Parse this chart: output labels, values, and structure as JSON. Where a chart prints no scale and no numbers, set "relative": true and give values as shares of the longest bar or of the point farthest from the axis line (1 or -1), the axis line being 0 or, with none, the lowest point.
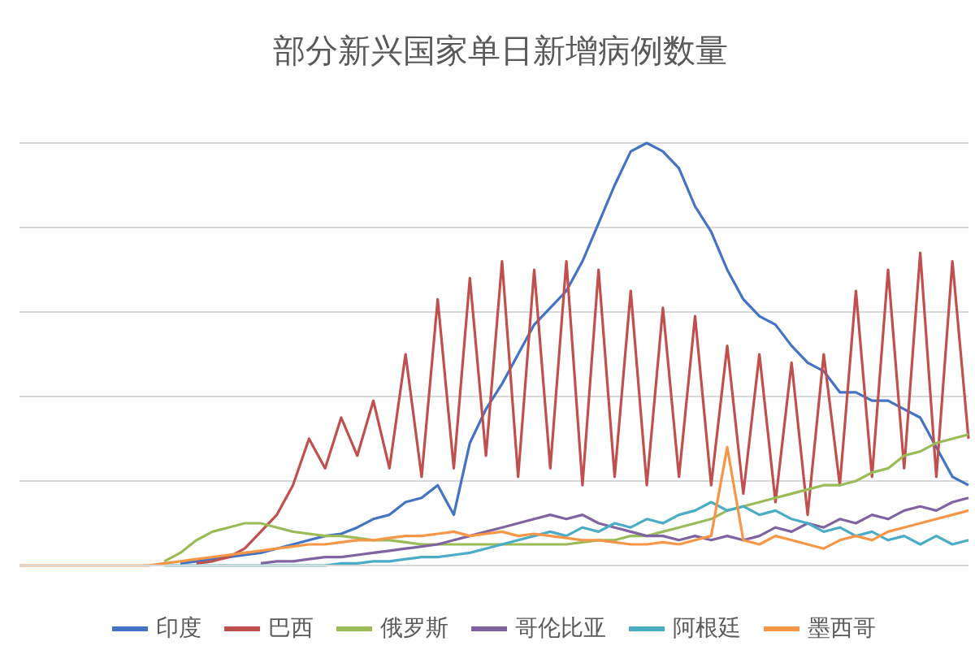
{
  "chart_data": {
    "type": "line",
    "title": "部分新兴国家单日新增病例数量",
    "relative": true,
    "grid": "y",
    "legend": "bottom",
    "marker": "none",
    "categories": [
      null,
      null,
      null,
      null,
      null,
      null,
      null,
      null,
      null,
      null,
      null,
      null,
      null,
      null,
      null,
      null,
      null,
      null,
      null,
      null,
      null,
      null,
      null,
      null,
      null,
      null,
      null,
      null,
      null,
      null,
      null,
      null,
      null,
      null,
      null,
      null,
      null,
      null,
      null,
      null,
      null,
      null,
      null,
      null,
      null,
      null,
      null,
      null,
      null,
      null,
      null,
      null,
      null,
      null,
      null,
      null,
      null,
      null,
      null,
      null
    ],
    "series": [
      {
        "name": "印度",
        "color": "#4472c4",
        "values": [
          null,
          null,
          null,
          null,
          null,
          null,
          null,
          null,
          null,
          null,
          0.005,
          0.01,
          0.015,
          0.02,
          0.025,
          0.03,
          0.04,
          0.05,
          0.06,
          0.07,
          0.075,
          0.09,
          0.11,
          0.12,
          0.15,
          0.16,
          0.19,
          0.12,
          0.29,
          0.37,
          0.43,
          0.5,
          0.57,
          0.61,
          0.65,
          0.72,
          0.81,
          0.9,
          0.98,
          1,
          0.98,
          0.94,
          0.85,
          0.79,
          0.7,
          0.63,
          0.59,
          0.57,
          0.52,
          0.48,
          0.46,
          0.41,
          0.41,
          0.39,
          0.39,
          0.37,
          0.35,
          0.28,
          0.21,
          0.19
        ]
      },
      {
        "name": "巴西",
        "color": "#c0504d",
        "values": [
          null,
          null,
          null,
          null,
          null,
          null,
          null,
          null,
          null,
          null,
          null,
          0.005,
          0.01,
          0.02,
          0.04,
          0.08,
          0.12,
          0.19,
          0.3,
          0.23,
          0.35,
          0.26,
          0.39,
          0.23,
          0.5,
          0.21,
          0.63,
          0.23,
          0.68,
          0.26,
          0.72,
          0.21,
          0.7,
          0.23,
          0.72,
          0.19,
          0.7,
          0.21,
          0.65,
          0.19,
          0.61,
          0.21,
          0.59,
          0.19,
          0.52,
          0.17,
          0.5,
          0.15,
          0.48,
          0.12,
          0.5,
          0.19,
          0.65,
          0.21,
          0.7,
          0.23,
          0.74,
          0.21,
          0.72,
          0.3
        ]
      },
      {
        "name": "俄罗斯",
        "color": "#9bbb59",
        "values": [
          null,
          null,
          null,
          null,
          null,
          null,
          null,
          null,
          null,
          0.01,
          0.03,
          0.06,
          0.08,
          0.09,
          0.1,
          0.1,
          0.09,
          0.08,
          0.075,
          0.07,
          0.07,
          0.065,
          0.06,
          0.06,
          0.055,
          0.05,
          0.05,
          0.05,
          0.05,
          0.05,
          0.05,
          0.05,
          0.05,
          0.05,
          0.05,
          0.055,
          0.06,
          0.06,
          0.07,
          0.07,
          0.08,
          0.09,
          0.1,
          0.11,
          0.13,
          0.14,
          0.15,
          0.16,
          0.17,
          0.18,
          0.19,
          0.19,
          0.2,
          0.22,
          0.23,
          0.26,
          0.27,
          0.29,
          0.3,
          0.31
        ]
      },
      {
        "name": "哥伦比亚",
        "color": "#8064a2",
        "values": [
          null,
          null,
          null,
          null,
          null,
          null,
          null,
          null,
          null,
          null,
          null,
          null,
          null,
          null,
          null,
          0.005,
          0.01,
          0.01,
          0.015,
          0.02,
          0.02,
          0.025,
          0.03,
          0.035,
          0.04,
          0.045,
          0.05,
          0.06,
          0.07,
          0.08,
          0.09,
          0.1,
          0.11,
          0.12,
          0.11,
          0.12,
          0.1,
          0.09,
          0.08,
          0.07,
          0.07,
          0.06,
          0.07,
          0.06,
          0.07,
          0.06,
          0.07,
          0.09,
          0.08,
          0.1,
          0.09,
          0.11,
          0.1,
          0.12,
          0.11,
          0.13,
          0.14,
          0.13,
          0.15,
          0.16
        ]
      },
      {
        "name": "阿根廷",
        "color": "#4bacc6",
        "values": [
          null,
          null,
          null,
          null,
          null,
          null,
          null,
          null,
          null,
          0,
          0,
          0,
          0,
          0,
          0,
          0,
          0,
          0,
          0,
          0,
          0.005,
          0.005,
          0.01,
          0.01,
          0.015,
          0.02,
          0.02,
          0.025,
          0.03,
          0.04,
          0.05,
          0.06,
          0.07,
          0.08,
          0.07,
          0.09,
          0.08,
          0.1,
          0.09,
          0.11,
          0.1,
          0.12,
          0.13,
          0.15,
          0.13,
          0.14,
          0.12,
          0.13,
          0.11,
          0.1,
          0.08,
          0.09,
          0.07,
          0.08,
          0.06,
          0.07,
          0.05,
          0.07,
          0.05,
          0.06
        ]
      },
      {
        "name": "墨西哥",
        "color": "#f79646",
        "values": [
          0,
          0,
          0,
          0,
          0,
          0,
          0,
          0,
          0,
          0.005,
          0.01,
          0.015,
          0.02,
          0.025,
          0.03,
          0.035,
          0.04,
          0.045,
          0.05,
          0.05,
          0.055,
          0.06,
          0.06,
          0.065,
          0.07,
          0.07,
          0.075,
          0.08,
          0.07,
          0.075,
          0.08,
          0.07,
          0.075,
          0.07,
          0.065,
          0.06,
          0.06,
          0.055,
          0.05,
          0.05,
          0.055,
          0.05,
          0.06,
          0.07,
          0.28,
          0.06,
          0.05,
          0.07,
          0.06,
          0.05,
          0.04,
          0.06,
          0.07,
          0.06,
          0.08,
          0.09,
          0.1,
          0.11,
          0.12,
          0.13
        ]
      }
    ]
  }
}
